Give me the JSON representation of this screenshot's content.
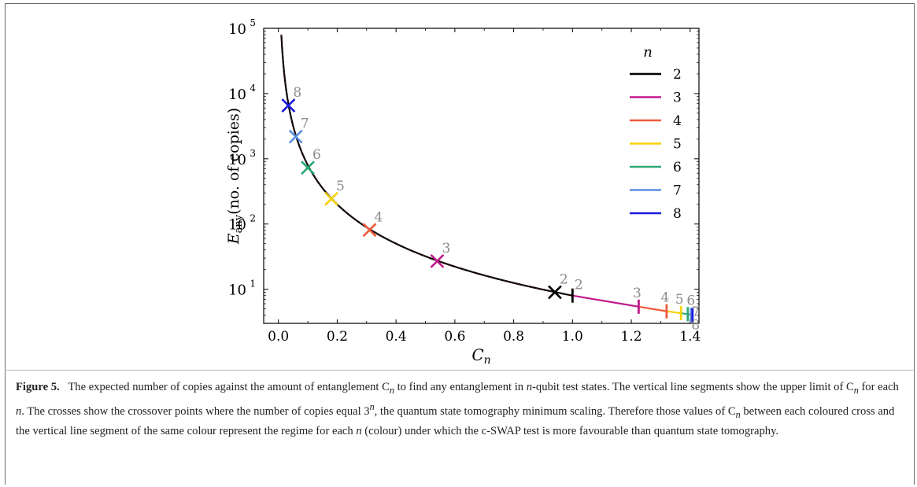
{
  "chart_data": {
    "type": "line",
    "xlabel": "C",
    "xlabel_sub": "n",
    "ylabel_main": "E",
    "ylabel_sub": "any",
    "ylabel_rest": "(no. of copies)",
    "xlim": [
      -0.05,
      1.43
    ],
    "ylim": [
      3,
      100000
    ],
    "yscale": "log",
    "xticks": [
      0.0,
      0.2,
      0.4,
      0.6,
      0.8,
      1.0,
      1.2,
      1.4
    ],
    "xtick_labels": [
      "0.0",
      "0.2",
      "0.4",
      "0.6",
      "0.8",
      "1.0",
      "1.2",
      "1.4"
    ],
    "yticks": [
      10,
      100,
      1000,
      10000,
      100000
    ],
    "ytick_labels": [
      {
        "base": "10",
        "exp": "1"
      },
      {
        "base": "10",
        "exp": "2"
      },
      {
        "base": "10",
        "exp": "3"
      },
      {
        "base": "10",
        "exp": "4"
      },
      {
        "base": "10",
        "exp": "5"
      }
    ],
    "legend": {
      "title": "n",
      "placement": "top-right",
      "entries": [
        {
          "label": "2",
          "color": "#000000"
        },
        {
          "label": "3",
          "color": "#c2188a"
        },
        {
          "label": "4",
          "color": "#f0593b"
        },
        {
          "label": "5",
          "color": "#f5d20a"
        },
        {
          "label": "6",
          "color": "#2aa876"
        },
        {
          "label": "7",
          "color": "#5b8fe0"
        },
        {
          "label": "8",
          "color": "#1a1adf"
        }
      ]
    },
    "curve_main": {
      "x_start": 0.01,
      "x_end": 1.0,
      "y_start": 80000,
      "y_end": 8
    },
    "curve_tail": {
      "x_start": 1.0,
      "x_end": 1.41
    },
    "crosses": [
      {
        "n": "2",
        "x": 0.94,
        "y": 9,
        "color": "#000000"
      },
      {
        "n": "3",
        "x": 0.54,
        "y": 27,
        "color": "#c2188a"
      },
      {
        "n": "4",
        "x": 0.31,
        "y": 81,
        "color": "#f0593b"
      },
      {
        "n": "5",
        "x": 0.18,
        "y": 243,
        "color": "#f5d20a"
      },
      {
        "n": "6",
        "x": 0.1,
        "y": 729,
        "color": "#2aa876"
      },
      {
        "n": "7",
        "x": 0.059,
        "y": 2187,
        "color": "#5b8fe0"
      },
      {
        "n": "8",
        "x": 0.034,
        "y": 6561,
        "color": "#1a1adf"
      }
    ],
    "limit_segments": [
      {
        "n": "2",
        "x": 1.0,
        "y": 8.0,
        "color": "#000000"
      },
      {
        "n": "3",
        "x": 1.225,
        "y": 5.4,
        "color": "#c2188a"
      },
      {
        "n": "4",
        "x": 1.32,
        "y": 4.6,
        "color": "#f0593b"
      },
      {
        "n": "5",
        "x": 1.369,
        "y": 4.3,
        "color": "#f5d20a"
      },
      {
        "n": "6",
        "x": 1.392,
        "y": 4.15,
        "color": "#2aa876"
      },
      {
        "n": "7",
        "x": 1.403,
        "y": 4.05,
        "color": "#5b8fe0"
      },
      {
        "n": "8",
        "x": 1.408,
        "y": 4.0,
        "color": "#1a1adf"
      }
    ],
    "annotation_color": "#8a8a8a"
  },
  "caption": {
    "label": "Figure 5.",
    "text": "The expected number of copies against the amount of entanglement C",
    "sub1": "n",
    "text2": " to find any entanglement in ",
    "n1": "n",
    "text3": "-qubit test states. The vertical line segments show the upper limit of C",
    "sub2": "n",
    "text4": " for each ",
    "n2": "n",
    "text5": ". The crosses show the crossover points where the number of copies equal 3",
    "sup": "n",
    "text6": ", the quantum state tomography minimum scaling. Therefore those values of C",
    "sub3": "n",
    "text7": " between each coloured cross and the vertical line segment of the same colour represent the regime for each ",
    "n3": "n",
    "text8": " (colour) under which the c-SWAP test is more favourable than quantum state tomography."
  }
}
